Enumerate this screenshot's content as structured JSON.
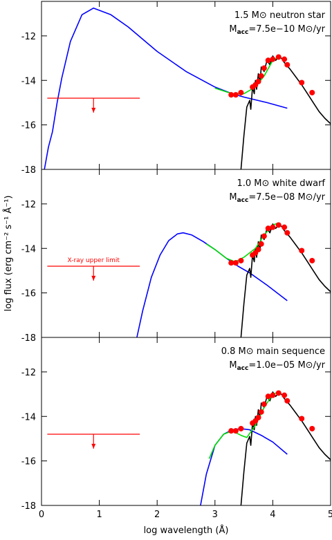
{
  "chart_data": [
    {
      "type": "line",
      "label_line1": "1.5 M⊙ neutron star",
      "label_line2": {
        "main": "M",
        "sub": "acc",
        "rest": "=7.5e−10 M⊙/yr"
      },
      "xlim": [
        0,
        5
      ],
      "xticks": [
        0,
        1,
        2,
        3,
        4,
        5
      ],
      "ylim": [
        -18,
        -10.45
      ],
      "yticks": [
        -18,
        -16,
        -14,
        -12
      ],
      "upper_limit": {
        "color": "#ff0000",
        "x": [
          0.1,
          1.7
        ],
        "y": -14.8,
        "arrow_x": 0.9,
        "arrow_to": -15.45
      },
      "series": [
        {
          "kind": "line",
          "color": "#0000ff",
          "x": [
            0.05,
            0.12,
            0.19,
            0.27,
            0.35,
            0.5,
            0.7,
            0.9,
            1.2,
            1.5,
            2.0,
            2.5,
            3.0,
            3.3,
            3.5,
            3.9,
            4.25
          ],
          "values": [
            -18,
            -17,
            -16.3,
            -15,
            -13.9,
            -12.25,
            -11.05,
            -10.75,
            -11.05,
            -11.6,
            -12.7,
            -13.6,
            -14.3,
            -14.6,
            -14.75,
            -15.0,
            -15.25
          ]
        },
        {
          "kind": "line",
          "color": "#00dd00",
          "x": [
            3.0,
            3.3,
            3.5,
            3.7,
            3.85,
            4.0,
            4.1
          ],
          "values": [
            -14.35,
            -14.6,
            -14.6,
            -14.3,
            -13.8,
            -13.1,
            -12.95
          ]
        },
        {
          "kind": "line",
          "color": "#000000",
          "x": [
            3.45,
            3.5,
            3.55,
            3.6,
            3.62,
            3.65,
            3.68,
            3.7,
            3.72,
            3.75,
            3.78,
            3.8,
            3.85,
            3.9,
            3.95,
            4.0,
            4.05,
            4.1,
            4.15,
            4.2,
            4.3,
            4.4,
            4.5,
            4.6,
            4.7,
            4.8,
            4.9,
            5.0
          ],
          "values": [
            -18,
            -16.5,
            -15.2,
            -14.9,
            -15.3,
            -14.3,
            -14.6,
            -14.0,
            -14.4,
            -13.7,
            -14.1,
            -13.4,
            -13.6,
            -13.1,
            -13.3,
            -12.9,
            -13.1,
            -12.95,
            -13.0,
            -13.2,
            -13.5,
            -13.85,
            -14.2,
            -14.6,
            -15.0,
            -15.4,
            -15.7,
            -15.95
          ]
        },
        {
          "kind": "marker",
          "color": "#ff0000",
          "x": [
            3.28,
            3.36,
            3.45,
            3.65,
            3.7,
            3.75,
            3.8,
            3.85,
            3.92,
            4.0,
            4.1,
            4.2,
            4.25,
            4.5,
            4.68
          ],
          "values": [
            -14.65,
            -14.65,
            -14.55,
            -14.3,
            -14.2,
            -14.05,
            -13.8,
            -13.45,
            -13.1,
            -13.05,
            -12.95,
            -13.05,
            -13.3,
            -14.1,
            -14.55
          ]
        }
      ]
    },
    {
      "type": "line",
      "label_line1": "1.0 M⊙ white dwarf",
      "label_line2": {
        "main": "M",
        "sub": "acc",
        "rest": "=7.5e−08 M⊙/yr"
      },
      "ylabel": "log flux (erg cm⁻² s⁻¹ Å⁻¹)",
      "xlim": [
        0,
        5
      ],
      "xticks": [
        0,
        1,
        2,
        3,
        4,
        5
      ],
      "ylim": [
        -18,
        -10.45
      ],
      "yticks": [
        -18,
        -16,
        -14,
        -12
      ],
      "upper_limit": {
        "color": "#ff0000",
        "x": [
          0.1,
          1.7
        ],
        "y": -14.8,
        "arrow_x": 0.9,
        "arrow_to": -15.45,
        "label": "X-ray upper limit"
      },
      "series": [
        {
          "kind": "line",
          "color": "#0000ff",
          "x": [
            1.65,
            1.75,
            1.9,
            2.05,
            2.2,
            2.35,
            2.45,
            2.6,
            2.8,
            3.0,
            3.2,
            3.4,
            3.6,
            3.9,
            4.25
          ],
          "values": [
            -18,
            -16.8,
            -15.3,
            -14.3,
            -13.65,
            -13.35,
            -13.3,
            -13.4,
            -13.7,
            -14.05,
            -14.45,
            -14.8,
            -15.1,
            -15.65,
            -16.35
          ]
        },
        {
          "kind": "line",
          "color": "#00dd00",
          "x": [
            2.85,
            3.0,
            3.2,
            3.35,
            3.5,
            3.7,
            3.85,
            4.0,
            4.1
          ],
          "values": [
            -13.8,
            -14.05,
            -14.45,
            -14.6,
            -14.4,
            -14.0,
            -13.4,
            -12.95,
            -12.85
          ]
        },
        {
          "kind": "line",
          "color": "#000000",
          "x": [
            3.45,
            3.5,
            3.55,
            3.6,
            3.62,
            3.65,
            3.68,
            3.7,
            3.72,
            3.75,
            3.78,
            3.8,
            3.85,
            3.9,
            3.95,
            4.0,
            4.05,
            4.1,
            4.15,
            4.2,
            4.3,
            4.4,
            4.5,
            4.6,
            4.7,
            4.8,
            4.9,
            5.0
          ],
          "values": [
            -18,
            -16.5,
            -15.2,
            -14.9,
            -15.3,
            -14.3,
            -14.6,
            -14.0,
            -14.4,
            -13.7,
            -14.1,
            -13.4,
            -13.6,
            -13.1,
            -13.3,
            -12.9,
            -13.1,
            -12.95,
            -13.0,
            -13.2,
            -13.5,
            -13.85,
            -14.2,
            -14.6,
            -15.0,
            -15.4,
            -15.7,
            -15.95
          ]
        },
        {
          "kind": "marker",
          "color": "#ff0000",
          "x": [
            3.28,
            3.36,
            3.45,
            3.65,
            3.7,
            3.75,
            3.8,
            3.85,
            3.92,
            4.0,
            4.1,
            4.2,
            4.25,
            4.5,
            4.68
          ],
          "values": [
            -14.65,
            -14.65,
            -14.55,
            -14.3,
            -14.2,
            -14.05,
            -13.8,
            -13.45,
            -13.1,
            -13.05,
            -12.95,
            -13.05,
            -13.3,
            -14.1,
            -14.55
          ]
        }
      ]
    },
    {
      "type": "line",
      "label_line1": "0.8 M⊙ main sequence",
      "label_line2": {
        "main": "M",
        "sub": "acc",
        "rest": "=1.0e−05 M⊙/yr"
      },
      "xlabel": "log wavelength (Å)",
      "xlim": [
        0,
        5
      ],
      "xticks": [
        0,
        1,
        2,
        3,
        4,
        5
      ],
      "ylim": [
        -18,
        -10.45
      ],
      "yticks": [
        -18,
        -16,
        -14,
        -12
      ],
      "upper_limit": {
        "color": "#ff0000",
        "x": [
          0.1,
          1.7
        ],
        "y": -14.8,
        "arrow_x": 0.9,
        "arrow_to": -15.45
      },
      "series": [
        {
          "kind": "line",
          "color": "#0000ff",
          "x": [
            2.75,
            2.85,
            3.0,
            3.15,
            3.3,
            3.45,
            3.6,
            3.8,
            4.0,
            4.25
          ],
          "values": [
            -18,
            -16.6,
            -15.3,
            -14.8,
            -14.6,
            -14.55,
            -14.6,
            -14.85,
            -15.15,
            -15.7
          ]
        },
        {
          "kind": "line",
          "color": "#00dd00",
          "x": [
            2.9,
            3.0,
            3.15,
            3.3,
            3.45,
            3.55,
            3.7,
            3.85,
            4.0,
            4.1
          ],
          "values": [
            -15.9,
            -15.3,
            -14.8,
            -14.65,
            -14.85,
            -14.95,
            -14.4,
            -13.6,
            -13.0,
            -12.9
          ]
        },
        {
          "kind": "line",
          "color": "#000000",
          "x": [
            3.45,
            3.5,
            3.55,
            3.6,
            3.62,
            3.65,
            3.68,
            3.7,
            3.72,
            3.75,
            3.78,
            3.8,
            3.85,
            3.9,
            3.95,
            4.0,
            4.05,
            4.1,
            4.15,
            4.2,
            4.3,
            4.4,
            4.5,
            4.6,
            4.7,
            4.8,
            4.9,
            5.0
          ],
          "values": [
            -18,
            -16.5,
            -15.2,
            -14.9,
            -15.3,
            -14.3,
            -14.6,
            -14.0,
            -14.4,
            -13.7,
            -14.1,
            -13.4,
            -13.6,
            -13.1,
            -13.3,
            -12.9,
            -13.1,
            -12.95,
            -13.0,
            -13.2,
            -13.5,
            -13.85,
            -14.2,
            -14.6,
            -15.0,
            -15.4,
            -15.7,
            -15.95
          ]
        },
        {
          "kind": "marker",
          "color": "#ff0000",
          "x": [
            3.28,
            3.36,
            3.45,
            3.65,
            3.7,
            3.75,
            3.8,
            3.85,
            3.92,
            4.0,
            4.1,
            4.2,
            4.25,
            4.5,
            4.68
          ],
          "values": [
            -14.65,
            -14.65,
            -14.55,
            -14.3,
            -14.2,
            -14.05,
            -13.8,
            -13.45,
            -13.1,
            -13.05,
            -12.95,
            -13.05,
            -13.3,
            -14.1,
            -14.55
          ]
        }
      ]
    }
  ]
}
